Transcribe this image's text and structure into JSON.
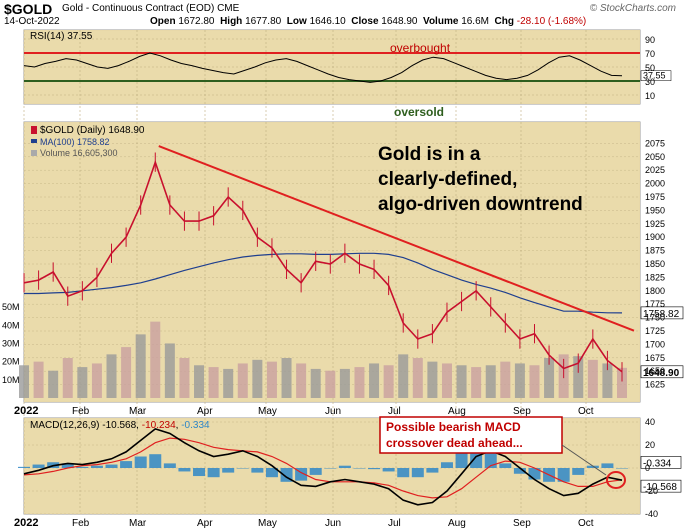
{
  "header": {
    "symbol": "$GOLD",
    "name": "Gold - Continuous Contract (EOD)",
    "exchange": "CME",
    "date": "14-Oct-2022",
    "brand": "© StockCharts.com",
    "open_label": "Open",
    "open": "1672.80",
    "high_label": "High",
    "high": "1677.80",
    "low_label": "Low",
    "low": "1646.10",
    "close_label": "Close",
    "close": "1648.90",
    "volume_label": "Volume",
    "volume": "16.6M",
    "chg_label": "Chg",
    "chg": "-28.10 (-1.68%)"
  },
  "annotations": {
    "overbought": "overbought",
    "oversold": "oversold",
    "headline": [
      "Gold is in a",
      "clearly-defined,",
      "algo-driven downtrend"
    ],
    "macd_note": [
      "Possible bearish MACD",
      "crossover dead ahead..."
    ]
  },
  "colors": {
    "panel_bg": "#e9d9a6",
    "price": "#c8102e",
    "ma": "#1f3f8f",
    "trendline": "#e02020",
    "rsi_upper": "#e02020",
    "rsi_lower": "#2e5e1e",
    "oversold_text": "#2e5e1e",
    "macd": "#000000",
    "signal": "#e02020",
    "histogram": "#2f87c7"
  },
  "chart_data": [
    {
      "type": "line",
      "title": "RSI(14) 37.55",
      "series": [
        {
          "name": "RSI(14)",
          "values": [
            52,
            50,
            55,
            58,
            62,
            60,
            55,
            50,
            48,
            52,
            58,
            65,
            70,
            66,
            60,
            55,
            52,
            48,
            45,
            42,
            40,
            45,
            50,
            56,
            60,
            62,
            58,
            52,
            46,
            40,
            35,
            32,
            30,
            28,
            30,
            35,
            42,
            52,
            60,
            64,
            62,
            56,
            50,
            44,
            38,
            34,
            32,
            34,
            38,
            46,
            56,
            64,
            66,
            60,
            52,
            44,
            38,
            37.55
          ]
        }
      ],
      "ylim": [
        0,
        100
      ],
      "yticks": [
        10,
        30,
        50,
        70,
        90
      ],
      "levels": {
        "overbought": 70,
        "oversold": 30
      },
      "value_label": "37.55"
    },
    {
      "type": "line",
      "title": "$GOLD (Daily) 1648.90",
      "legend": [
        "$GOLD (Daily) 1648.90",
        "MA(100) 1758.82",
        "Volume 16,605,300"
      ],
      "x": [
        "2022-01-03",
        "2022-01-10",
        "2022-01-17",
        "2022-01-24",
        "2022-01-31",
        "2022-02-07",
        "2022-02-14",
        "2022-02-21",
        "2022-02-28",
        "2022-03-07",
        "2022-03-14",
        "2022-03-21",
        "2022-03-28",
        "2022-04-04",
        "2022-04-11",
        "2022-04-18",
        "2022-04-25",
        "2022-05-02",
        "2022-05-09",
        "2022-05-16",
        "2022-05-23",
        "2022-05-30",
        "2022-06-06",
        "2022-06-13",
        "2022-06-20",
        "2022-06-27",
        "2022-07-04",
        "2022-07-11",
        "2022-07-18",
        "2022-07-25",
        "2022-08-01",
        "2022-08-08",
        "2022-08-15",
        "2022-08-22",
        "2022-08-29",
        "2022-09-05",
        "2022-09-12",
        "2022-09-19",
        "2022-09-26",
        "2022-10-03",
        "2022-10-10",
        "2022-10-14"
      ],
      "series": [
        {
          "name": "$GOLD (Daily)",
          "values": [
            1815,
            1820,
            1835,
            1790,
            1800,
            1825,
            1870,
            1900,
            1960,
            2040,
            1960,
            1930,
            1930,
            1940,
            1975,
            1950,
            1900,
            1880,
            1840,
            1815,
            1855,
            1850,
            1870,
            1850,
            1840,
            1810,
            1740,
            1710,
            1720,
            1760,
            1780,
            1800,
            1770,
            1740,
            1710,
            1720,
            1680,
            1655,
            1665,
            1710,
            1670,
            1648.9
          ]
        },
        {
          "name": "MA(100)",
          "values": [
            1795,
            1795,
            1796,
            1797,
            1800,
            1803,
            1806,
            1810,
            1815,
            1822,
            1830,
            1838,
            1845,
            1852,
            1858,
            1863,
            1866,
            1868,
            1869,
            1869,
            1868,
            1868,
            1869,
            1870,
            1870,
            1868,
            1862,
            1852,
            1840,
            1830,
            1820,
            1812,
            1805,
            1797,
            1787,
            1778,
            1770,
            1762,
            1762,
            1760,
            1759,
            1758.82
          ]
        },
        {
          "name": "Volume",
          "values": [
            18,
            20,
            15,
            22,
            17,
            19,
            24,
            28,
            35,
            42,
            30,
            22,
            18,
            17,
            16,
            19,
            21,
            20,
            22,
            19,
            16,
            15,
            16,
            17,
            19,
            18,
            24,
            22,
            20,
            19,
            18,
            17,
            18,
            20,
            19,
            18,
            22,
            24,
            23,
            21,
            19,
            16.6
          ]
        }
      ],
      "trendline": {
        "from": {
          "x": "2022-03-08",
          "y": 2070
        },
        "to": {
          "x": "2022-10-14",
          "y": 1720
        }
      },
      "ylim": [
        1600,
        2100
      ],
      "yticks": [
        1625,
        1650,
        1675,
        1700,
        1725,
        1750,
        1775,
        1800,
        1825,
        1850,
        1875,
        1900,
        1925,
        1950,
        1975,
        2000,
        2025,
        2050,
        2075
      ],
      "volume_ticks": [
        "10M",
        "20M",
        "30M",
        "40M",
        "50M"
      ],
      "last_labels": [
        "1758.82",
        "1648.90"
      ],
      "xticks": [
        "2022",
        "Feb",
        "Mar",
        "Apr",
        "May",
        "Jun",
        "Jul",
        "Aug",
        "Sep",
        "Oct"
      ]
    },
    {
      "type": "line",
      "title": "MACD(12,26,9) -10.568, -10.234, -0.334",
      "legend": {
        "label": "MACD(12,26,9)",
        "macd": "-10.568",
        "signal": "-10.234",
        "hist": "-0.334"
      },
      "series": [
        {
          "name": "MACD",
          "values": [
            -5,
            -2,
            2,
            4,
            3,
            5,
            8,
            14,
            24,
            34,
            30,
            22,
            15,
            10,
            12,
            15,
            10,
            2,
            -8,
            -15,
            -16,
            -12,
            -10,
            -12,
            -14,
            -18,
            -28,
            -32,
            -30,
            -20,
            -5,
            10,
            15,
            10,
            0,
            -10,
            -18,
            -24,
            -22,
            -14,
            -8,
            -10.568
          ]
        },
        {
          "name": "Signal",
          "values": [
            -6,
            -5,
            -3,
            0,
            2,
            3,
            5,
            8,
            14,
            22,
            26,
            25,
            22,
            18,
            16,
            15,
            14,
            10,
            4,
            -4,
            -10,
            -12,
            -12,
            -12,
            -13,
            -15,
            -20,
            -24,
            -26,
            -25,
            -18,
            -8,
            2,
            6,
            5,
            0,
            -6,
            -12,
            -16,
            -16,
            -12,
            -10.234
          ]
        },
        {
          "name": "Histogram",
          "values": [
            1,
            3,
            5,
            4,
            1,
            2,
            3,
            6,
            10,
            12,
            4,
            -3,
            -7,
            -8,
            -4,
            0,
            -4,
            -8,
            -12,
            -11,
            -6,
            0,
            2,
            0,
            -1,
            -3,
            -8,
            -8,
            -4,
            5,
            13,
            18,
            13,
            4,
            -5,
            -10,
            -12,
            -12,
            -6,
            2,
            4,
            -0.334
          ]
        }
      ],
      "ylim": [
        -40,
        40
      ],
      "yticks": [
        -40,
        -20,
        0,
        20,
        40
      ],
      "last_labels": [
        "-0.334",
        "-10.568"
      ],
      "xticks": [
        "2022",
        "Feb",
        "Mar",
        "Apr",
        "May",
        "Jun",
        "Jul",
        "Aug",
        "Sep",
        "Oct"
      ]
    }
  ]
}
